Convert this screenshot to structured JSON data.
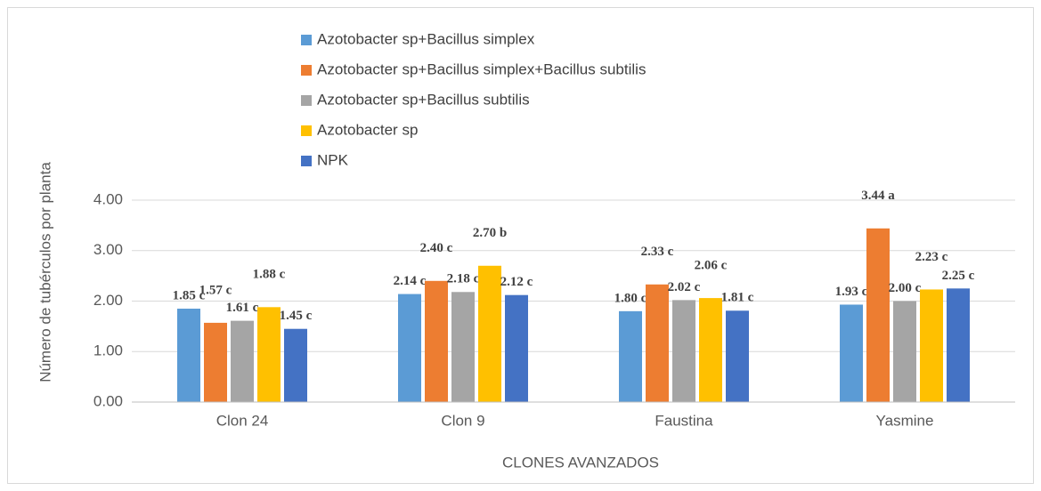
{
  "chart_data": {
    "type": "bar",
    "y_label": "Número de tubérculos por planta",
    "x_label": "CLONES AVANZADOS",
    "categories": [
      "Clon 24",
      "Clon 9",
      "Faustina",
      "Yasmine"
    ],
    "series": [
      {
        "name": "Azotobacter sp+Bacillus simplex",
        "color": "#5b9bd5",
        "values": [
          1.85,
          2.14,
          1.8,
          1.93
        ],
        "value_labels": [
          "1.85 c",
          "2.14 c",
          "1.80 c",
          "1.93 c"
        ]
      },
      {
        "name": "Azotobacter sp+Bacillus simplex+Bacillus subtilis",
        "color": "#ed7d31",
        "values": [
          1.57,
          2.4,
          2.33,
          3.44
        ],
        "value_labels": [
          "1.57 c",
          "2.40 c",
          "2.33 c",
          "3.44 a"
        ]
      },
      {
        "name": "Azotobacter sp+Bacillus subtilis",
        "color": "#a5a5a5",
        "values": [
          1.61,
          2.18,
          2.02,
          2.0
        ],
        "value_labels": [
          "1.61 c",
          "2.18 c",
          "2.02 c",
          "2.00 c"
        ]
      },
      {
        "name": "Azotobacter sp",
        "color": "#ffc000",
        "values": [
          1.88,
          2.7,
          2.06,
          2.23
        ],
        "value_labels": [
          "1.88 c",
          "2.70 b",
          "2.06 c",
          "2.23 c"
        ]
      },
      {
        "name": "NPK",
        "color": "#4472c4",
        "values": [
          1.45,
          2.12,
          1.81,
          2.25
        ],
        "value_labels": [
          "1.45 c",
          "2.12 c",
          "1.81 c",
          "2.25 c"
        ]
      }
    ],
    "ylim": [
      0,
      4
    ],
    "yticks": [
      {
        "value": 0,
        "label": "0.00"
      },
      {
        "value": 1,
        "label": "1.00"
      },
      {
        "value": 2,
        "label": "2.00"
      },
      {
        "value": 3,
        "label": "3.00"
      },
      {
        "value": 4,
        "label": "4.00"
      }
    ],
    "grid": true,
    "legend": "top"
  }
}
